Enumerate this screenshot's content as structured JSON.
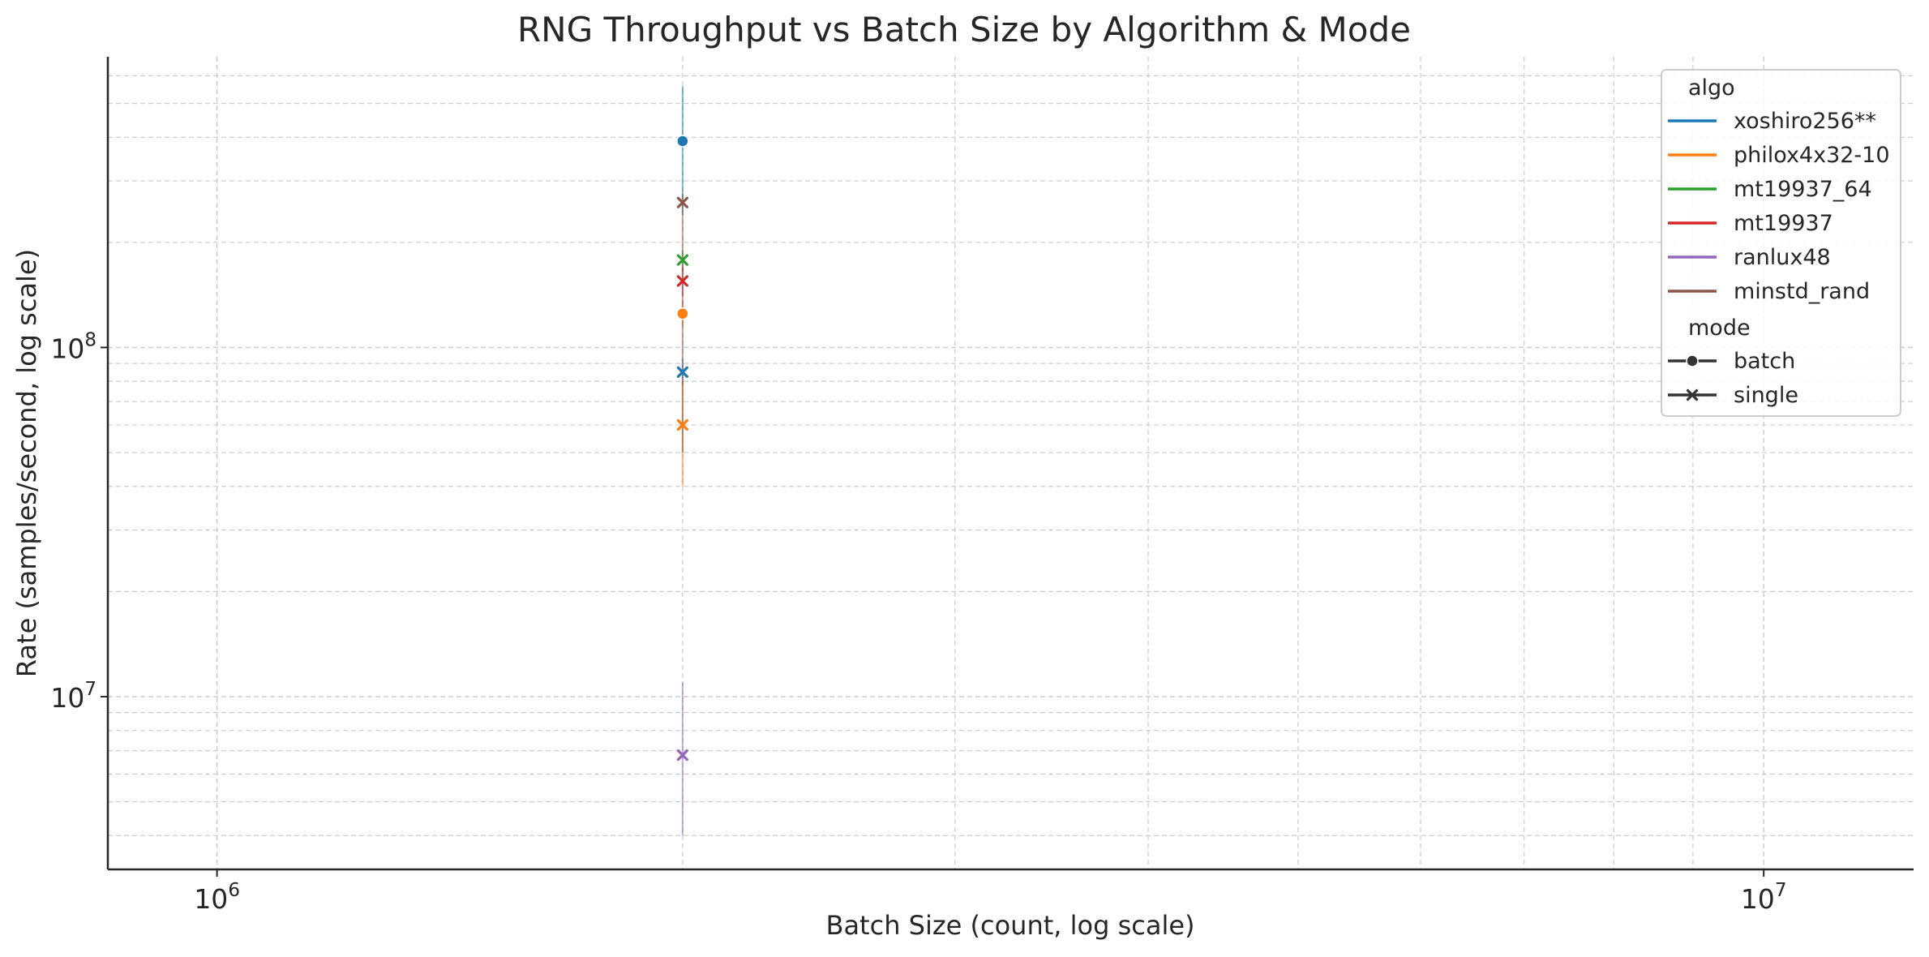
{
  "chart_data": {
    "type": "scatter",
    "title": "RNG Throughput vs Batch Size by Algorithm & Mode",
    "xlabel": "Batch Size (count, log scale)",
    "ylabel": "Rate (samples/second, log scale)",
    "xscale": "log",
    "yscale": "log",
    "xlim": [
      850000,
      12500000
    ],
    "ylim": [
      3200000,
      680000000
    ],
    "x_ticks": [
      {
        "value": 1000000,
        "base": "10",
        "exp": "6"
      },
      {
        "value": 10000000,
        "base": "10",
        "exp": "7"
      }
    ],
    "y_ticks": [
      {
        "value": 10000000,
        "base": "10",
        "exp": "7"
      },
      {
        "value": 100000000,
        "base": "10",
        "exp": "8"
      }
    ],
    "grid": true,
    "legend_position": "top-right",
    "legend": {
      "algo_title": "algo",
      "mode_title": "mode",
      "modes": [
        {
          "name": "batch",
          "marker": "circle"
        },
        {
          "name": "single",
          "marker": "x"
        }
      ]
    },
    "series": [
      {
        "algo": "xoshiro256**",
        "color": "#1f77b4",
        "points": [
          {
            "mode": "batch",
            "x": 2000000,
            "y": 390000000,
            "ci": [
              240000000,
              560000000
            ]
          },
          {
            "mode": "single",
            "x": 2000000,
            "y": 85000000,
            "ci": [
              78000000,
              93000000
            ]
          }
        ]
      },
      {
        "algo": "philox4x32-10",
        "color": "#ff7f0e",
        "points": [
          {
            "mode": "batch",
            "x": 2000000,
            "y": 125000000,
            "ci": [
              115000000,
              136000000
            ]
          },
          {
            "mode": "single",
            "x": 2000000,
            "y": 60000000,
            "ci": [
              40000000,
              80000000
            ]
          }
        ]
      },
      {
        "algo": "mt19937_64",
        "color": "#2ca02c",
        "points": [
          {
            "mode": "single",
            "x": 2000000,
            "y": 178000000,
            "ci": [
              165000000,
              190000000
            ]
          }
        ]
      },
      {
        "algo": "mt19937",
        "color": "#d62728",
        "points": [
          {
            "mode": "single",
            "x": 2000000,
            "y": 155000000,
            "ci": [
              140000000,
              170000000
            ]
          }
        ]
      },
      {
        "algo": "ranlux48",
        "color": "#9467bd",
        "points": [
          {
            "mode": "single",
            "x": 2000000,
            "y": 6800000,
            "ci": [
              4000000,
              11000000
            ]
          }
        ]
      },
      {
        "algo": "minstd_rand",
        "color": "#8c564b",
        "points": [
          {
            "mode": "single",
            "x": 2000000,
            "y": 260000000,
            "ci": [
              50000000,
              275000000
            ]
          }
        ]
      }
    ]
  }
}
